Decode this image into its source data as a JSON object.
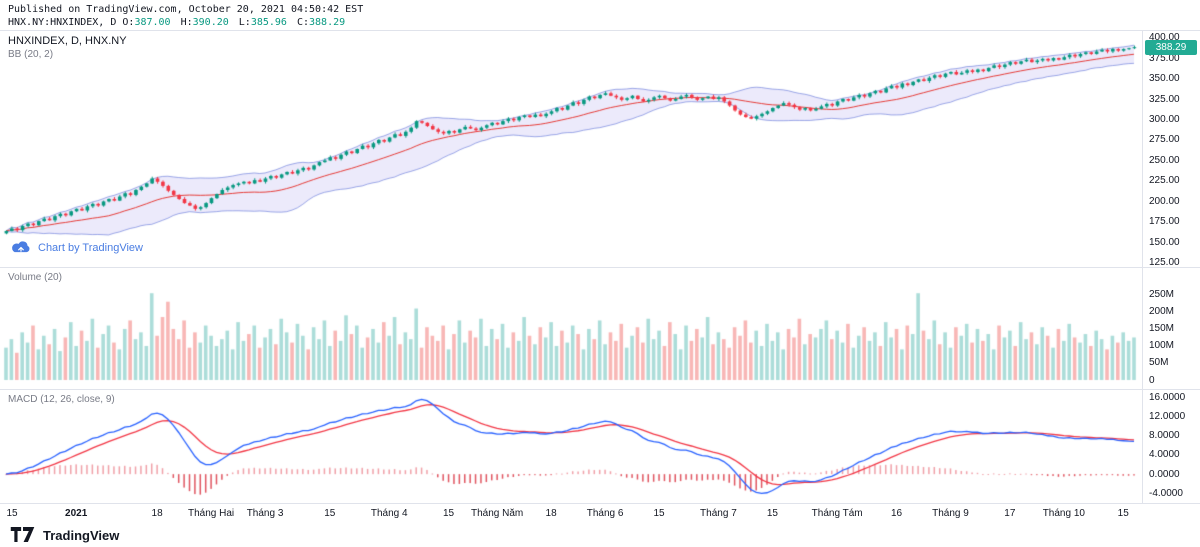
{
  "header": {
    "published_line": "Published on TradingView.com, October 20, 2021 04:50:42 EST",
    "symbol_line_prefix": "HNX.NY:HNXINDEX, D",
    "ohlc": [
      {
        "label": "O:",
        "value": "387.00"
      },
      {
        "label": "H:",
        "value": "390.20"
      },
      {
        "label": "L:",
        "value": "385.96"
      },
      {
        "label": "C:",
        "value": "388.29"
      }
    ]
  },
  "panels": {
    "main": {
      "legend_line1": "HNXINDEX, D, HNX.NY",
      "legend_line2": "BB (20, 2)"
    },
    "volume": {
      "legend": "Volume (20)"
    },
    "macd": {
      "legend": "MACD (12, 26, close, 9)"
    }
  },
  "price_badge": "388.29",
  "watermark": {
    "text": "Chart by TradingView"
  },
  "footer": {
    "brand": "TradingView"
  },
  "axes": {
    "price": {
      "ticks": [
        {
          "v": 400,
          "label": "400.00"
        },
        {
          "v": 375,
          "label": "375.00"
        },
        {
          "v": 350,
          "label": "350.00"
        },
        {
          "v": 325,
          "label": "325.00"
        },
        {
          "v": 300,
          "label": "300.00"
        },
        {
          "v": 275,
          "label": "275.00"
        },
        {
          "v": 250,
          "label": "250.00"
        },
        {
          "v": 225,
          "label": "225.00"
        },
        {
          "v": 200,
          "label": "200.00"
        },
        {
          "v": 175,
          "label": "175.00"
        },
        {
          "v": 150,
          "label": "150.00"
        },
        {
          "v": 125,
          "label": "125.00"
        }
      ]
    },
    "volume": {
      "ticks": [
        {
          "v": 250,
          "label": "250M"
        },
        {
          "v": 200,
          "label": "200M"
        },
        {
          "v": 150,
          "label": "150M"
        },
        {
          "v": 100,
          "label": "100M"
        },
        {
          "v": 50,
          "label": "50M"
        },
        {
          "v": 0,
          "label": "0"
        }
      ]
    },
    "macd": {
      "ticks": [
        {
          "v": 16,
          "label": "16.0000"
        },
        {
          "v": 12,
          "label": "12.0000"
        },
        {
          "v": 8,
          "label": "8.0000"
        },
        {
          "v": 4,
          "label": "4.0000"
        },
        {
          "v": 0,
          "label": "0.0000"
        },
        {
          "v": -4,
          "label": "-4.0000"
        }
      ]
    }
  },
  "time_axis": {
    "ticks": [
      {
        "label": "15",
        "i": 0
      },
      {
        "label": "2021",
        "i": 13,
        "bold": true
      },
      {
        "label": "18",
        "i": 28
      },
      {
        "label": "Tháng Hai",
        "i": 38
      },
      {
        "label": "Tháng 3",
        "i": 48
      },
      {
        "label": "15",
        "i": 60
      },
      {
        "label": "Tháng 4",
        "i": 71
      },
      {
        "label": "15",
        "i": 82
      },
      {
        "label": "Tháng Năm",
        "i": 91
      },
      {
        "label": "18",
        "i": 101
      },
      {
        "label": "Tháng 6",
        "i": 111
      },
      {
        "label": "15",
        "i": 121
      },
      {
        "label": "Tháng 7",
        "i": 132
      },
      {
        "label": "15",
        "i": 142
      },
      {
        "label": "Tháng Tám",
        "i": 154
      },
      {
        "label": "16",
        "i": 165
      },
      {
        "label": "Tháng 9",
        "i": 175
      },
      {
        "label": "17",
        "i": 186
      },
      {
        "label": "Tháng 10",
        "i": 196
      },
      {
        "label": "15",
        "i": 207
      }
    ]
  },
  "colors": {
    "up": "#089981",
    "down": "#f23645",
    "vol_up": "rgba(38,166,154,0.38)",
    "vol_down": "rgba(239,83,80,0.42)",
    "bb_fill": "rgba(126,117,227,0.15)",
    "bb_edge": "rgba(76,98,212,0.55)",
    "bb_basis": "#e53935",
    "macd_line": "#2962ff",
    "signal_line": "#f23645",
    "hist_pos": "#f0a0a8",
    "hist_neg": "#e05560",
    "badge_bg": "#22ab94",
    "axis_text": "#131722",
    "border": "#e0e3eb"
  },
  "chart_data": {
    "type": "candlestick",
    "symbol": "HNXINDEX",
    "interval": "D",
    "exchange": "HNX.NY",
    "overlays": [
      {
        "type": "bollinger",
        "length": 20,
        "mult": 2
      }
    ],
    "subpanels": [
      "volume(20)",
      "macd(12,26,close,9)"
    ],
    "price_range": [
      125,
      400
    ],
    "volume_range_m": [
      0,
      250
    ],
    "macd_range": [
      -4,
      16
    ],
    "last": {
      "o": 387.0,
      "h": 390.2,
      "l": 385.96,
      "c": 388.29
    },
    "closes": [
      164,
      167,
      165,
      170,
      173,
      171,
      176,
      179,
      177,
      182,
      185,
      183,
      188,
      191,
      189,
      194,
      197,
      195,
      200,
      203,
      201,
      206,
      210,
      208,
      214,
      218,
      222,
      228,
      224,
      219,
      213,
      208,
      203,
      198,
      195,
      191,
      193,
      198,
      204,
      209,
      214,
      217,
      220,
      222,
      224,
      222,
      226,
      224,
      228,
      231,
      229,
      233,
      236,
      234,
      238,
      241,
      239,
      244,
      248,
      250,
      254,
      252,
      257,
      261,
      259,
      264,
      268,
      266,
      271,
      275,
      273,
      278,
      282,
      280,
      285,
      290,
      298,
      296,
      292,
      288,
      285,
      283,
      286,
      284,
      288,
      291,
      289,
      287,
      290,
      293,
      296,
      294,
      298,
      301,
      299,
      303,
      305,
      303,
      306,
      304,
      307,
      310,
      314,
      312,
      317,
      321,
      319,
      324,
      328,
      326,
      330,
      332,
      329,
      327,
      324,
      326,
      329,
      325,
      322,
      324,
      327,
      329,
      326,
      323,
      325,
      328,
      330,
      327,
      324,
      326,
      328,
      325,
      327,
      322,
      317,
      311,
      306,
      303,
      301,
      304,
      307,
      310,
      314,
      317,
      320,
      318,
      315,
      312,
      314,
      311,
      313,
      316,
      319,
      317,
      322,
      325,
      323,
      327,
      330,
      328,
      332,
      335,
      333,
      338,
      341,
      339,
      344,
      342,
      346,
      349,
      347,
      351,
      354,
      352,
      356,
      358,
      355,
      357,
      360,
      358,
      361,
      359,
      363,
      366,
      364,
      367,
      370,
      368,
      371,
      373,
      370,
      372,
      374,
      372,
      375,
      373,
      376,
      379,
      377,
      380,
      382,
      380,
      383,
      385,
      383,
      386,
      384,
      386,
      387,
      388.29
    ],
    "volumes_m": [
      95,
      120,
      80,
      140,
      110,
      160,
      90,
      130,
      105,
      150,
      85,
      125,
      170,
      100,
      145,
      115,
      180,
      95,
      135,
      160,
      110,
      90,
      150,
      175,
      120,
      140,
      100,
      255,
      130,
      185,
      230,
      150,
      120,
      175,
      95,
      140,
      110,
      160,
      130,
      100,
      120,
      145,
      90,
      170,
      115,
      135,
      160,
      95,
      125,
      150,
      105,
      180,
      140,
      110,
      165,
      130,
      90,
      155,
      120,
      175,
      100,
      145,
      115,
      190,
      135,
      160,
      95,
      125,
      150,
      110,
      170,
      130,
      185,
      105,
      140,
      120,
      210,
      95,
      155,
      130,
      115,
      160,
      90,
      135,
      175,
      110,
      145,
      125,
      180,
      100,
      150,
      120,
      165,
      95,
      140,
      115,
      185,
      130,
      105,
      155,
      125,
      170,
      100,
      145,
      110,
      160,
      135,
      90,
      150,
      120,
      175,
      105,
      140,
      115,
      165,
      95,
      130,
      155,
      110,
      180,
      120,
      145,
      100,
      170,
      135,
      90,
      160,
      115,
      150,
      125,
      185,
      105,
      140,
      120,
      95,
      155,
      130,
      175,
      110,
      145,
      100,
      165,
      115,
      140,
      90,
      150,
      125,
      180,
      105,
      135,
      125,
      150,
      175,
      120,
      145,
      110,
      165,
      95,
      130,
      155,
      115,
      140,
      100,
      170,
      125,
      150,
      90,
      160,
      135,
      255,
      145,
      120,
      175,
      105,
      140,
      95,
      155,
      130,
      165,
      110,
      150,
      115,
      135,
      90,
      160,
      125,
      145,
      100,
      170,
      120,
      140,
      105,
      155,
      130,
      95,
      150,
      115,
      165,
      125,
      110,
      135,
      100,
      145,
      120,
      90,
      130,
      110,
      140,
      115,
      125
    ]
  }
}
